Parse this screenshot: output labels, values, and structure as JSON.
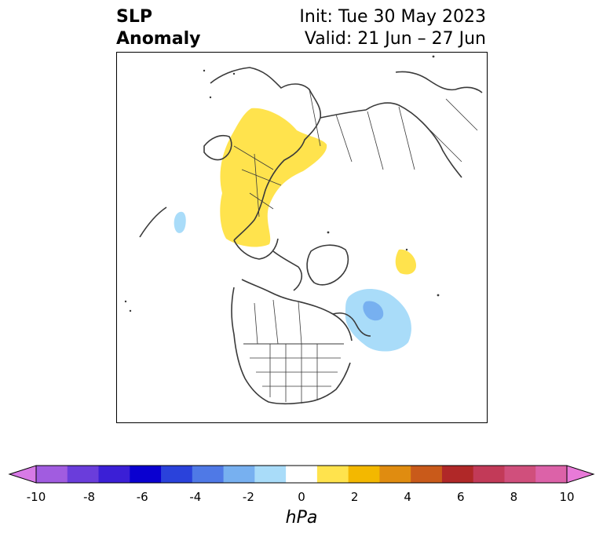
{
  "header": {
    "title_line1": "SLP",
    "title_line2": "Anomaly",
    "init": "Init: Tue 30 May 2023",
    "valid": "Valid: 21 Jun – 27 Jun"
  },
  "colorbar": {
    "unit": "hPa",
    "min": -10,
    "max": 10,
    "extend": "both",
    "ticks": [
      "-10",
      "-8",
      "-6",
      "-4",
      "-2",
      "0",
      "2",
      "4",
      "6",
      "8",
      "10"
    ],
    "colors": [
      "#d77ae6",
      "#a15ce0",
      "#6a3ddb",
      "#3b1fd6",
      "#0a00d0",
      "#2a42db",
      "#4f79e6",
      "#77b0f0",
      "#a9dcf9",
      "#ffffff",
      "#ffe34d",
      "#f3b800",
      "#e08c10",
      "#c95a1a",
      "#b02828",
      "#c23a58",
      "#d04f7c",
      "#dc62a8",
      "#e87ad8"
    ]
  },
  "map": {
    "projection": "north-polar-stereographic",
    "anomaly_regions": [
      {
        "name": "positive-anomaly-scandinavia-europe",
        "level": "+1 to +2 hPa",
        "color": "#ffe34d"
      },
      {
        "name": "positive-anomaly-hudson-bay",
        "level": "+1 to +2 hPa",
        "color": "#ffe34d"
      },
      {
        "name": "negative-anomaly-atlantic-small",
        "level": "-1 to -2 hPa",
        "color": "#a9dcf9"
      },
      {
        "name": "negative-anomaly-newfoundland",
        "level": "-1 to -2 hPa",
        "color": "#a9dcf9"
      },
      {
        "name": "negative-anomaly-newfoundland-core",
        "level": "-2 to -3 hPa",
        "color": "#77b0f0"
      }
    ]
  }
}
